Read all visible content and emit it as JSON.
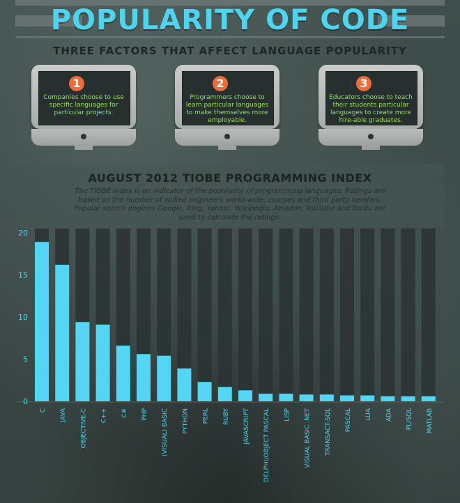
{
  "title": "POPULARITY OF CODE",
  "subtitle": "THREE FACTORS THAT AFFECT LANGUAGE POPULARITY",
  "factors": [
    {
      "number": "1",
      "text": "Companies choose to use specific languages for particular projects."
    },
    {
      "number": "2",
      "text": "Programmers choose to learn particular languages to make themselves more employable."
    },
    {
      "number": "3",
      "text": "Educators choose to teach their students particular languages to create more hire-able graduates."
    }
  ],
  "tiobe": {
    "title": "AUGUST 2012 TIOBE PROGRAMMING INDEX",
    "description": "The TIOBE index is an indicator of the popularity of programming languages. Ratings are based on the number of skilled engineers world-wide, courses and third party vendors. Popular search engines Google, Bing, Yahoo!, Wikipedia, Amazon, YouTube and Baidu are used to calculate the ratings."
  },
  "colors": {
    "accent": "#4fd4f0",
    "bar": "#52d6f3",
    "number_circle": "#ee6c3c",
    "screen_text": "#8fe35a"
  },
  "chart_data": {
    "type": "bar",
    "title": "AUGUST 2012 TIOBE PROGRAMMING INDEX",
    "xlabel": "",
    "ylabel": "",
    "ylim": [
      0,
      20
    ],
    "yticks": [
      0,
      5,
      10,
      15,
      20
    ],
    "categories": [
      "C",
      "JAVA",
      "OBJECTIVE-C",
      "C++",
      "C#",
      "PHP",
      "(VISUAL) BASIC",
      "PYTHON",
      "PERL",
      "RUBY",
      "JAVASCRIPT",
      "DELPHI/OBJECT PASCAL",
      "LISP",
      "VISUAL BASIC .NET",
      "TRANSACT-SQL",
      "PASCAL",
      "LUA",
      "ADA",
      "PL/SQL",
      "MATLAB"
    ],
    "values": [
      18.9,
      16.2,
      9.4,
      9.1,
      6.6,
      5.6,
      5.4,
      3.9,
      2.3,
      1.7,
      1.3,
      0.9,
      0.9,
      0.8,
      0.8,
      0.7,
      0.7,
      0.6,
      0.6,
      0.6
    ],
    "grid": false,
    "legend": "none"
  }
}
